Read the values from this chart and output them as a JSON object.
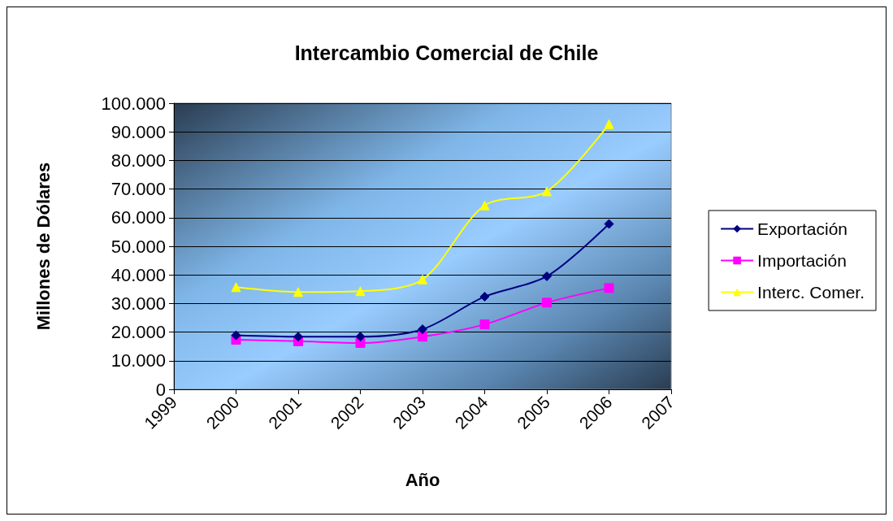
{
  "chart_data": {
    "type": "line",
    "title": "Intercambio Comercial de Chile",
    "xlabel": "Año",
    "ylabel": "Millones de Dólares",
    "x": [
      2000,
      2001,
      2002,
      2003,
      2004,
      2005,
      2006
    ],
    "series": [
      {
        "name": "Exportación",
        "color": "#000080",
        "marker": "diamond",
        "values": [
          18900,
          18400,
          18400,
          21000,
          32400,
          39500,
          57800
        ]
      },
      {
        "name": "Importación",
        "color": "#ff00ff",
        "marker": "square",
        "values": [
          17300,
          16800,
          16200,
          18400,
          22700,
          30300,
          35400
        ]
      },
      {
        "name": "Interc. Comer.",
        "color": "#ffff00",
        "marker": "triangle",
        "values": [
          35700,
          34000,
          34300,
          38400,
          64300,
          69200,
          92700
        ]
      }
    ],
    "xlim": [
      1999,
      2007
    ],
    "xticks": [
      1999,
      2000,
      2001,
      2002,
      2003,
      2004,
      2005,
      2006,
      2007
    ],
    "ylim": [
      0,
      100000
    ],
    "yticks": [
      {
        "value": 0,
        "label": "0"
      },
      {
        "value": 10000,
        "label": "10.000"
      },
      {
        "value": 20000,
        "label": "20.000"
      },
      {
        "value": 30000,
        "label": "30.000"
      },
      {
        "value": 40000,
        "label": "40.000"
      },
      {
        "value": 50000,
        "label": "50.000"
      },
      {
        "value": 60000,
        "label": "60.000"
      },
      {
        "value": 70000,
        "label": "70.000"
      },
      {
        "value": 80000,
        "label": "80.000"
      },
      {
        "value": 90000,
        "label": "90.000"
      },
      {
        "value": 100000,
        "label": "100.000"
      }
    ],
    "grid": "y",
    "legend": "right",
    "line_style": "solid"
  }
}
